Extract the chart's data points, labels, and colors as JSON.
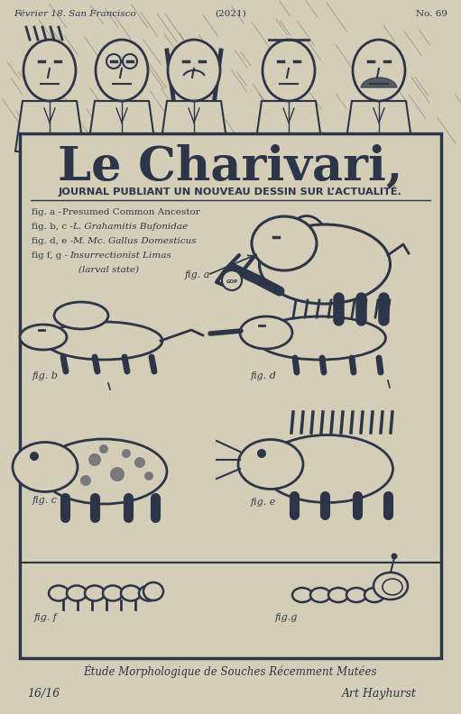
{
  "bg_color": "#d4cdb8",
  "border_color": "#2d3548",
  "title_main": "Le Charivari,",
  "title_sub": "JOURNAL PUBLIANT UN NOUVEAU DESSIN SUR L’ACTUALITÉ.",
  "header_left": "Février 18. San Francisco",
  "header_center": "(2021)",
  "header_right": "No. 69",
  "legend_lines": [
    "fig. a -  Presumed Common Ancestor",
    "fig. b, c -  L. Grahamitis Bufonidae",
    "fig. d, e -  M. Mc. Gallus Domesticus",
    "fig f, g -  Insurrectionist Limas",
    "            (larval state)"
  ],
  "bottom_text": "Étude Morphologique de Souches Récemment Mutées",
  "edition_left": "16/16",
  "signature_right": "Art Hayhurst",
  "ink_color": "#2d3548",
  "light_ink": "#4a5268"
}
